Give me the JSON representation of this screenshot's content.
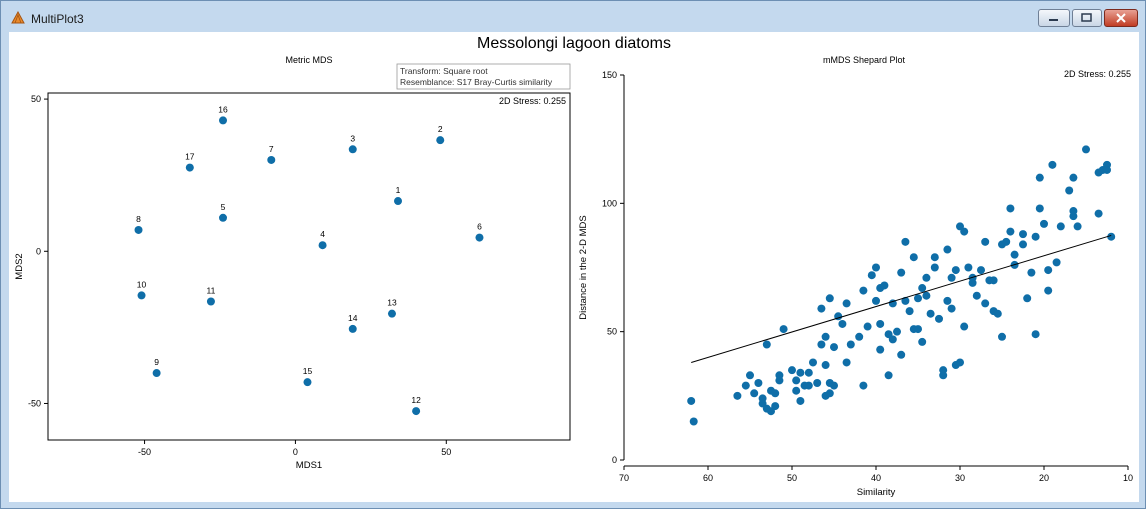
{
  "window": {
    "title": "MultiPlot3"
  },
  "figure": {
    "title": "Messolongi lagoon diatoms"
  },
  "colors": {
    "point": "#0f6ea8"
  },
  "chart_data": [
    {
      "type": "scatter",
      "title": "Metric MDS",
      "xlabel": "MDS1",
      "ylabel": "MDS2",
      "xlim": [
        -82,
        91
      ],
      "ylim": [
        -62,
        52
      ],
      "xticks": [
        -50,
        0,
        50
      ],
      "yticks": [
        -50,
        0,
        50
      ],
      "stress": "2D Stress: 0.255",
      "info": [
        "Transform: Square root",
        "Resemblance: S17 Bray-Curtis similarity"
      ],
      "points": [
        {
          "label": "1",
          "x": 34,
          "y": 16.5
        },
        {
          "label": "2",
          "x": 48,
          "y": 36.5
        },
        {
          "label": "3",
          "x": 19,
          "y": 33.5
        },
        {
          "label": "4",
          "x": 9,
          "y": 2
        },
        {
          "label": "5",
          "x": -24,
          "y": 11
        },
        {
          "label": "6",
          "x": 61,
          "y": 4.5
        },
        {
          "label": "7",
          "x": -8,
          "y": 30
        },
        {
          "label": "8",
          "x": -52,
          "y": 7
        },
        {
          "label": "9",
          "x": -46,
          "y": -40
        },
        {
          "label": "10",
          "x": -51,
          "y": -14.5
        },
        {
          "label": "11",
          "x": -28,
          "y": -16.5
        },
        {
          "label": "12",
          "x": 40,
          "y": -52.5
        },
        {
          "label": "13",
          "x": 32,
          "y": -20.5
        },
        {
          "label": "14",
          "x": 19,
          "y": -25.5
        },
        {
          "label": "15",
          "x": 4,
          "y": -43
        },
        {
          "label": "16",
          "x": -24,
          "y": 43
        },
        {
          "label": "17",
          "x": -35,
          "y": 27.5
        }
      ]
    },
    {
      "type": "scatter",
      "title": "mMDS Shepard Plot",
      "xlabel": "Similarity",
      "ylabel": "Distance in the 2-D MDS",
      "xlim": [
        70,
        10
      ],
      "ylim": [
        0,
        150
      ],
      "xticks": [
        70,
        60,
        50,
        40,
        30,
        20,
        10
      ],
      "yticks": [
        0,
        50,
        100,
        150
      ],
      "stress": "2D Stress: 0.255",
      "fit_line": [
        {
          "x": 62,
          "y": 38
        },
        {
          "x": 12,
          "y": 87.5
        }
      ],
      "points": [
        [
          62,
          23
        ],
        [
          61.7,
          15
        ],
        [
          56.5,
          25
        ],
        [
          55.5,
          29
        ],
        [
          55,
          33
        ],
        [
          54.5,
          26
        ],
        [
          54,
          30
        ],
        [
          53.5,
          22
        ],
        [
          53.5,
          24
        ],
        [
          53,
          20
        ],
        [
          53,
          45
        ],
        [
          52.5,
          27
        ],
        [
          52.5,
          19
        ],
        [
          52,
          21
        ],
        [
          52,
          26
        ],
        [
          51.5,
          31
        ],
        [
          51.5,
          33
        ],
        [
          51,
          51
        ],
        [
          50,
          35
        ],
        [
          49.5,
          27
        ],
        [
          49.5,
          31
        ],
        [
          49,
          23
        ],
        [
          49,
          34
        ],
        [
          48.5,
          29
        ],
        [
          48,
          29
        ],
        [
          48,
          34
        ],
        [
          47.5,
          38
        ],
        [
          47,
          30
        ],
        [
          46.5,
          59
        ],
        [
          46.5,
          45
        ],
        [
          46,
          25
        ],
        [
          46,
          37
        ],
        [
          46,
          48
        ],
        [
          45.5,
          63
        ],
        [
          45.5,
          30
        ],
        [
          45.5,
          26
        ],
        [
          45,
          29
        ],
        [
          45,
          44
        ],
        [
          44.5,
          56
        ],
        [
          44,
          53
        ],
        [
          43.5,
          61
        ],
        [
          43.5,
          38
        ],
        [
          43,
          45
        ],
        [
          42,
          48
        ],
        [
          41.5,
          29
        ],
        [
          41.5,
          66
        ],
        [
          41,
          52
        ],
        [
          40.5,
          72
        ],
        [
          40,
          75
        ],
        [
          40,
          62
        ],
        [
          39.5,
          53
        ],
        [
          39.5,
          67
        ],
        [
          39.5,
          43
        ],
        [
          39,
          68
        ],
        [
          38.5,
          49
        ],
        [
          38.5,
          33
        ],
        [
          38,
          47
        ],
        [
          38,
          61
        ],
        [
          37.5,
          50
        ],
        [
          37,
          73
        ],
        [
          37,
          41
        ],
        [
          36.5,
          85
        ],
        [
          36.5,
          62
        ],
        [
          36,
          58
        ],
        [
          35.5,
          79
        ],
        [
          35.5,
          51
        ],
        [
          35,
          51
        ],
        [
          35,
          63
        ],
        [
          34.5,
          67
        ],
        [
          34.5,
          46
        ],
        [
          34,
          64
        ],
        [
          34,
          71
        ],
        [
          33.5,
          57
        ],
        [
          33,
          79
        ],
        [
          33,
          75
        ],
        [
          32.5,
          55
        ],
        [
          32,
          33
        ],
        [
          32,
          35
        ],
        [
          31.5,
          82
        ],
        [
          31.5,
          62
        ],
        [
          31,
          59
        ],
        [
          31,
          71
        ],
        [
          30.5,
          37
        ],
        [
          30.5,
          74
        ],
        [
          30,
          38
        ],
        [
          30,
          91
        ],
        [
          29.5,
          89
        ],
        [
          29.5,
          52
        ],
        [
          29,
          75
        ],
        [
          28.5,
          71
        ],
        [
          28.5,
          69
        ],
        [
          28,
          64
        ],
        [
          27.5,
          74
        ],
        [
          27,
          85
        ],
        [
          27,
          61
        ],
        [
          26.5,
          70
        ],
        [
          26,
          70
        ],
        [
          26,
          58
        ],
        [
          25.5,
          57
        ],
        [
          25,
          84
        ],
        [
          25,
          48
        ],
        [
          24.5,
          85
        ],
        [
          24,
          98
        ],
        [
          24,
          89
        ],
        [
          23.5,
          80
        ],
        [
          23.5,
          76
        ],
        [
          22.5,
          84
        ],
        [
          22.5,
          88
        ],
        [
          22,
          63
        ],
        [
          21.5,
          73
        ],
        [
          21,
          49
        ],
        [
          21,
          87
        ],
        [
          20.5,
          110
        ],
        [
          20.5,
          98
        ],
        [
          20,
          92
        ],
        [
          19.5,
          66
        ],
        [
          19.5,
          74
        ],
        [
          19,
          115
        ],
        [
          18.5,
          77
        ],
        [
          18,
          91
        ],
        [
          17,
          105
        ],
        [
          16.5,
          110
        ],
        [
          16.5,
          95
        ],
        [
          16.5,
          97
        ],
        [
          16,
          91
        ],
        [
          15,
          121
        ],
        [
          13.5,
          96
        ],
        [
          13.5,
          112
        ],
        [
          13,
          113
        ],
        [
          12.5,
          115
        ],
        [
          12.5,
          113
        ],
        [
          12,
          87
        ]
      ]
    }
  ]
}
